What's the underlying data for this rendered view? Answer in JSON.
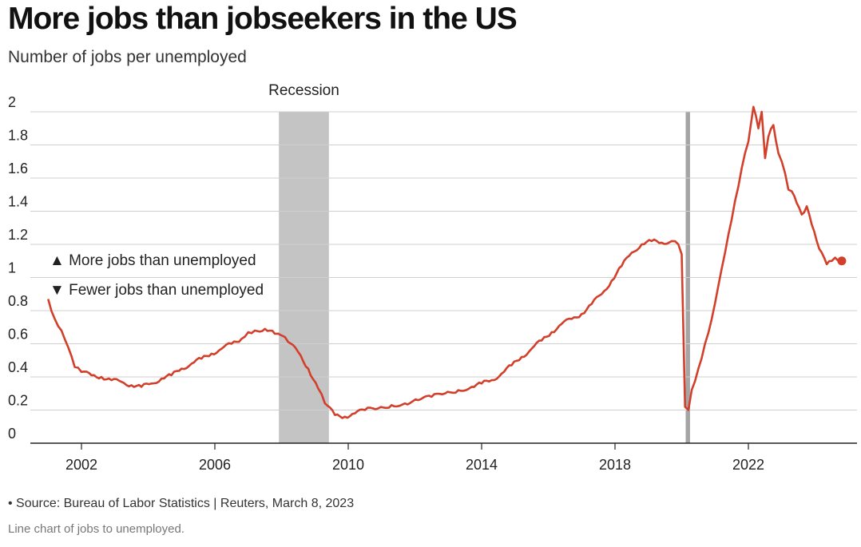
{
  "title": "More jobs than jobseekers in the US",
  "subtitle": "Number of jobs per unemployed",
  "source": "• Source: Bureau of Labor Statistics | Reuters, March 8, 2023",
  "caption": "Line chart of jobs to unemployed.",
  "legend": {
    "more": "▲ More jobs than unemployed",
    "fewer": "▼ Fewer jobs than unemployed"
  },
  "colors": {
    "line": "#d23f2a",
    "recession": "#c4c4c4",
    "recession_covid": "#a5a5a5",
    "grid": "#cfcfcf"
  },
  "chart_data": {
    "type": "line",
    "title": "More jobs than jobseekers in the US",
    "subtitle": "Number of jobs per unemployed",
    "ylim": [
      0,
      2
    ],
    "yticks": [
      "0",
      "0.2",
      "0.4",
      "0.6",
      "0.8",
      "1",
      "1.2",
      "1.4",
      "1.6",
      "1.8",
      "2"
    ],
    "xlim": [
      2001.0,
      2025.0
    ],
    "xticks": [
      "2002",
      "2006",
      "2010",
      "2014",
      "2018",
      "2022"
    ],
    "grid": true,
    "recessions": [
      {
        "label": "Recession",
        "start": 2007.92,
        "end": 2009.42
      },
      {
        "label": "",
        "start": 2020.12,
        "end": 2020.25
      }
    ],
    "series": [
      {
        "x": [
          2001.0,
          2001.2,
          2001.4,
          2001.6,
          2001.8,
          2002.0,
          2002.3,
          2002.6,
          2002.9,
          2003.2,
          2003.5,
          2003.8,
          2004.1,
          2004.4,
          2004.7,
          2005.0,
          2005.3,
          2005.6,
          2005.9,
          2006.2,
          2006.5,
          2006.8,
          2007.0,
          2007.2,
          2007.5,
          2007.8,
          2008.0,
          2008.2,
          2008.5,
          2008.8,
          2009.1,
          2009.3,
          2009.6,
          2009.9,
          2010.2,
          2010.5,
          2010.9,
          2011.3,
          2011.7,
          2012.1,
          2012.5,
          2012.9,
          2013.3,
          2013.7,
          2014.0,
          2014.3,
          2014.6,
          2014.9,
          2015.2,
          2015.5,
          2015.8,
          2016.1,
          2016.4,
          2016.7,
          2017.0,
          2017.3,
          2017.6,
          2017.9,
          2018.2,
          2018.5,
          2018.8,
          2019.1,
          2019.4,
          2019.7,
          2019.9,
          2020.0,
          2020.1,
          2020.2,
          2020.3,
          2020.5,
          2020.7,
          2020.9,
          2021.1,
          2021.3,
          2021.5,
          2021.7,
          2021.9,
          2022.0,
          2022.15,
          2022.3,
          2022.4,
          2022.5,
          2022.6,
          2022.75,
          2022.9,
          2023.0,
          2023.1,
          2023.2,
          2023.3,
          2023.45,
          2023.6,
          2023.75,
          2023.9,
          2024.05,
          2024.2,
          2024.35,
          2024.5,
          2024.6,
          2024.7,
          2024.8
        ],
        "values": [
          0.87,
          0.75,
          0.68,
          0.58,
          0.46,
          0.43,
          0.41,
          0.4,
          0.38,
          0.37,
          0.35,
          0.34,
          0.36,
          0.39,
          0.41,
          0.45,
          0.48,
          0.51,
          0.54,
          0.57,
          0.6,
          0.63,
          0.67,
          0.68,
          0.69,
          0.66,
          0.65,
          0.61,
          0.55,
          0.45,
          0.33,
          0.24,
          0.17,
          0.16,
          0.18,
          0.2,
          0.21,
          0.23,
          0.24,
          0.26,
          0.28,
          0.3,
          0.32,
          0.34,
          0.36,
          0.38,
          0.42,
          0.47,
          0.52,
          0.57,
          0.62,
          0.67,
          0.72,
          0.75,
          0.78,
          0.84,
          0.9,
          0.98,
          1.07,
          1.15,
          1.2,
          1.22,
          1.21,
          1.22,
          1.2,
          1.14,
          0.22,
          0.2,
          0.32,
          0.45,
          0.6,
          0.75,
          0.95,
          1.15,
          1.35,
          1.55,
          1.75,
          1.82,
          2.03,
          1.9,
          2.0,
          1.72,
          1.85,
          1.92,
          1.75,
          1.7,
          1.63,
          1.53,
          1.52,
          1.45,
          1.38,
          1.43,
          1.32,
          1.22,
          1.15,
          1.08,
          1.1,
          1.12,
          1.1,
          1.1
        ]
      }
    ]
  }
}
